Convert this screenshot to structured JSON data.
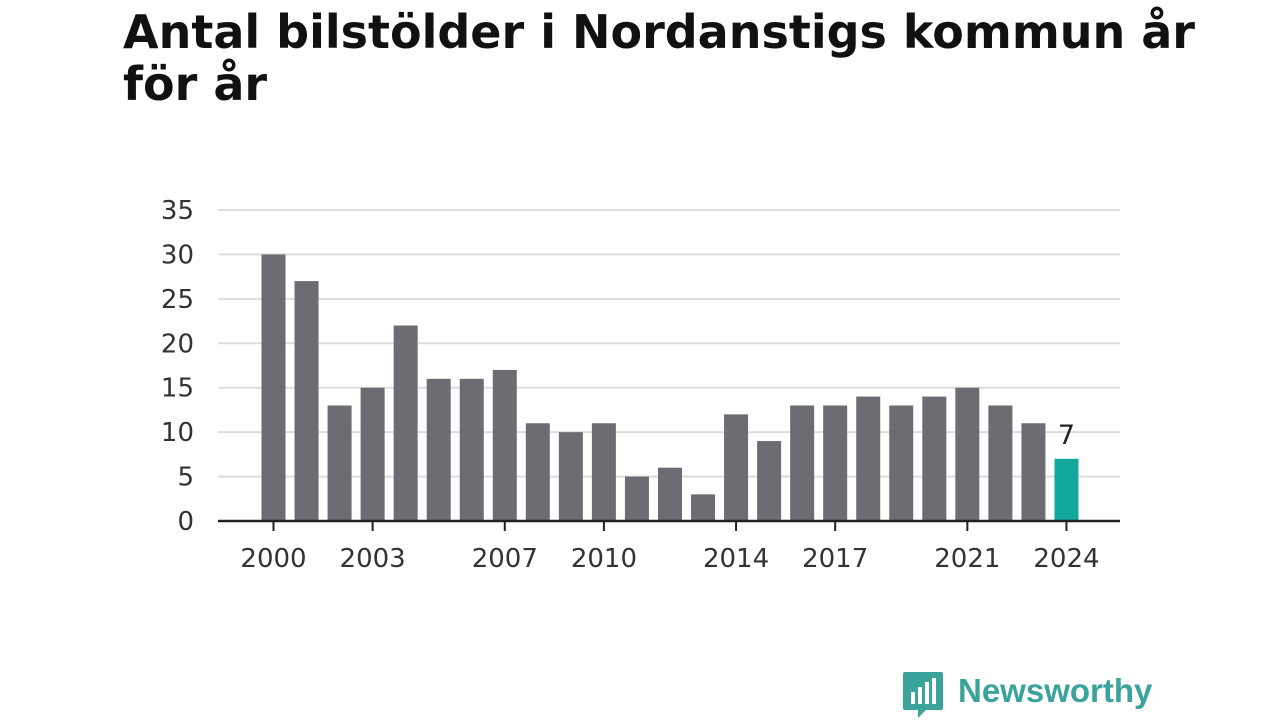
{
  "header": {
    "title": "Antal bilstölder i Nordanstigs kommun år för år"
  },
  "chart_data": {
    "type": "bar",
    "title": "Antal bilstölder i Nordanstigs kommun år för år",
    "xlabel": "",
    "ylabel": "",
    "x": [
      2000,
      2001,
      2002,
      2003,
      2004,
      2005,
      2006,
      2007,
      2008,
      2009,
      2010,
      2011,
      2012,
      2013,
      2014,
      2015,
      2016,
      2017,
      2018,
      2019,
      2020,
      2021,
      2022,
      2023,
      2024
    ],
    "values": [
      30,
      27,
      13,
      15,
      22,
      16,
      16,
      17,
      11,
      10,
      11,
      5,
      6,
      3,
      12,
      9,
      13,
      13,
      14,
      13,
      14,
      15,
      13,
      11,
      7
    ],
    "x_tick_labels": [
      "2000",
      "2003",
      "2007",
      "2010",
      "2014",
      "2017",
      "2021",
      "2024"
    ],
    "y_ticks": [
      0,
      5,
      10,
      15,
      20,
      25,
      30,
      35
    ],
    "ylim": [
      0,
      35
    ],
    "grid": true,
    "legend": "none",
    "highlight": {
      "x": 2024,
      "label": "7",
      "color": "#12a89d"
    },
    "bar_color": "#6d6c72",
    "grid_color": "#dddddd",
    "axis_color": "#222222"
  },
  "branding": {
    "logo_text": "Newsworthy",
    "logo_icon": "newsworthy-chart-bubble-icon",
    "logo_color": "#3aa39b"
  }
}
